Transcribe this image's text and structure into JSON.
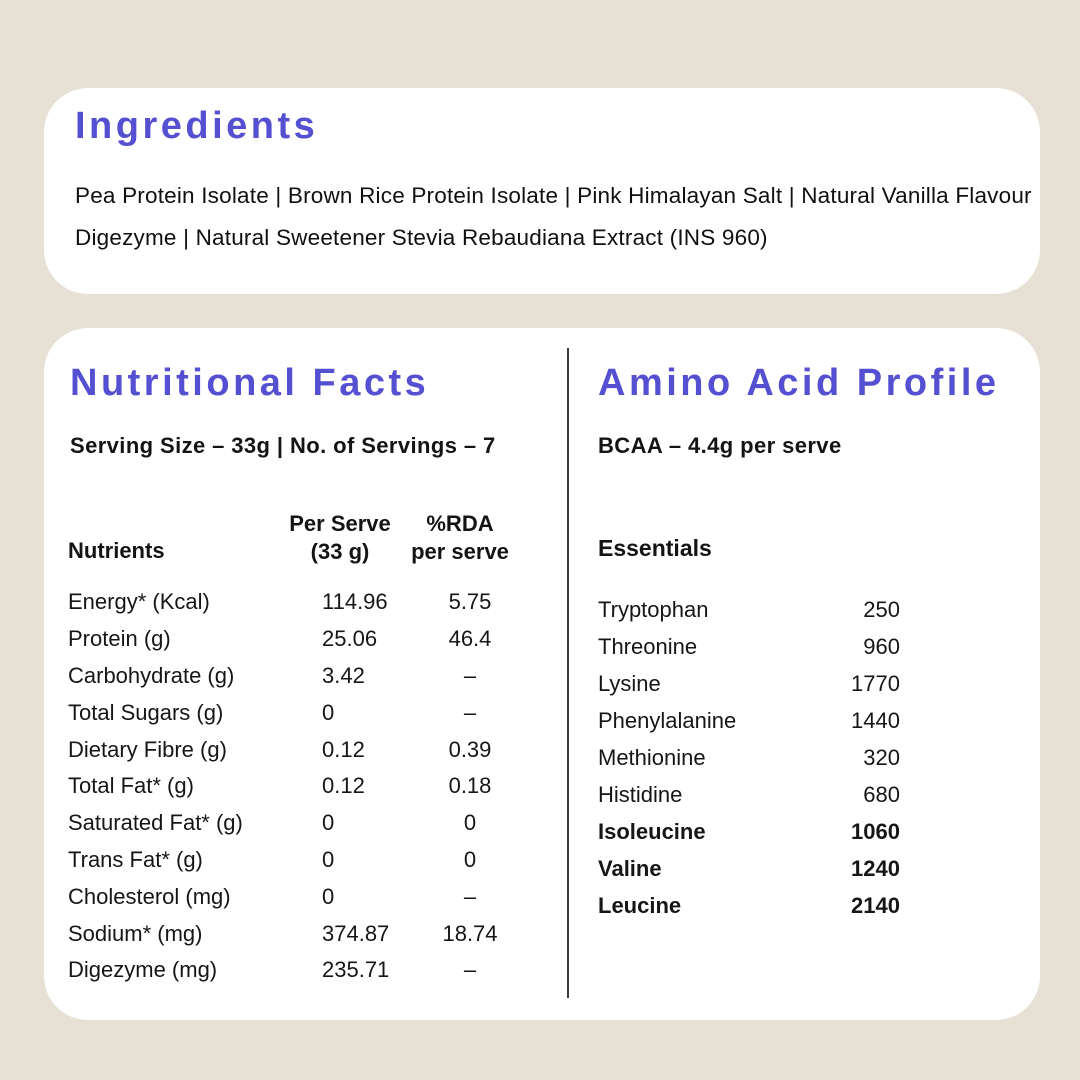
{
  "colors": {
    "background": "#E6E1D4",
    "card": "#FFFFFF",
    "accent": "#5550D2",
    "text": "#161616",
    "divider": "#3B3B3B"
  },
  "ingredients": {
    "title": "Ingredients",
    "lines": [
      "Pea Protein Isolate | Brown Rice Protein Isolate | Pink Himalayan Salt | Natural Vanilla Flavour",
      "Digezyme | Natural Sweetener Stevia Rebaudiana Extract (INS 960)"
    ]
  },
  "nutrition": {
    "title": "Nutritional Facts",
    "serving_info": "Serving Size – 33g | No. of Servings – 7",
    "columns": {
      "nutrients": "Nutrients",
      "per_serve_line1": "Per Serve",
      "per_serve_line2": "(33 g)",
      "rda_line1": "%RDA",
      "rda_line2": "per serve"
    },
    "rows": [
      {
        "name": "Energy* (Kcal)",
        "per_serve": "114.96",
        "rda": "5.75"
      },
      {
        "name": "Protein (g)",
        "per_serve": "25.06",
        "rda": "46.4"
      },
      {
        "name": "Carbohydrate (g)",
        "per_serve": "3.42",
        "rda": "–"
      },
      {
        "name": "Total Sugars (g)",
        "per_serve": "0",
        "rda": "–"
      },
      {
        "name": "Dietary Fibre (g)",
        "per_serve": "0.12",
        "rda": "0.39"
      },
      {
        "name": "Total Fat* (g)",
        "per_serve": "0.12",
        "rda": "0.18"
      },
      {
        "name": "Saturated Fat* (g)",
        "per_serve": "0",
        "rda": "0"
      },
      {
        "name": "Trans Fat* (g)",
        "per_serve": "0",
        "rda": "0"
      },
      {
        "name": "Cholesterol (mg)",
        "per_serve": "0",
        "rda": "–"
      },
      {
        "name": "Sodium* (mg)",
        "per_serve": "374.87",
        "rda": "18.74"
      },
      {
        "name": "Digezyme (mg)",
        "per_serve": "235.71",
        "rda": "–"
      }
    ]
  },
  "amino": {
    "title": "Amino Acid Profile",
    "subtitle": "BCAA – 4.4g per serve",
    "section_label": "Essentials",
    "rows": [
      {
        "name": "Tryptophan",
        "value": "250",
        "bold": false
      },
      {
        "name": "Threonine",
        "value": "960",
        "bold": false
      },
      {
        "name": "Lysine",
        "value": "1770",
        "bold": false
      },
      {
        "name": "Phenylalanine",
        "value": "1440",
        "bold": false
      },
      {
        "name": "Methionine",
        "value": "320",
        "bold": false
      },
      {
        "name": "Histidine",
        "value": "680",
        "bold": false
      },
      {
        "name": "Isoleucine",
        "value": "1060",
        "bold": true
      },
      {
        "name": "Valine",
        "value": "1240",
        "bold": true
      },
      {
        "name": "Leucine",
        "value": "2140",
        "bold": true
      }
    ]
  }
}
